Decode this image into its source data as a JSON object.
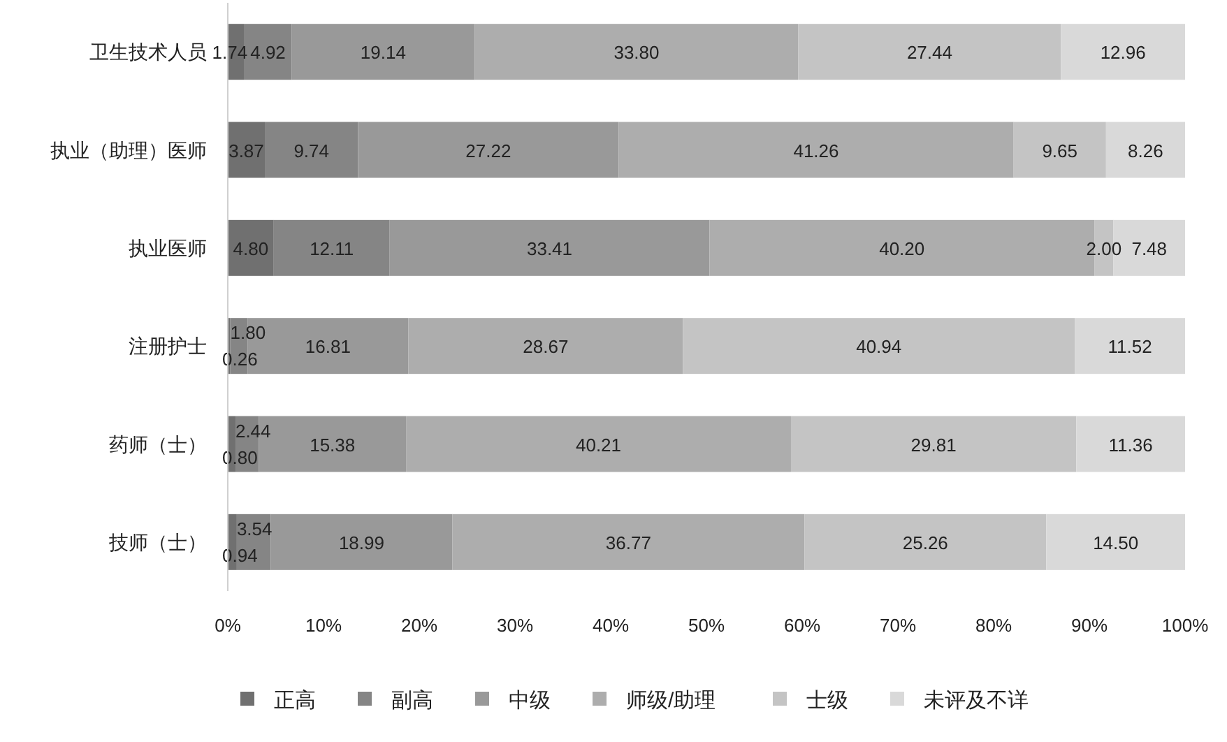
{
  "chart_data": {
    "type": "bar",
    "orientation": "horizontal",
    "stacked": true,
    "legend": "bottom",
    "grid": false,
    "categories": [
      "卫生技术人员",
      "执业（助理）医师",
      "执业医师",
      "注册护士",
      "药师（士）",
      "技师（士）"
    ],
    "xlim": [
      0,
      100
    ],
    "xticks": [
      {
        "value": 0,
        "label": "0%"
      },
      {
        "value": 10,
        "label": "10%"
      },
      {
        "value": 20,
        "label": "20%"
      },
      {
        "value": 30,
        "label": "30%"
      },
      {
        "value": 40,
        "label": "40%"
      },
      {
        "value": 50,
        "label": "50%"
      },
      {
        "value": 60,
        "label": "60%"
      },
      {
        "value": 70,
        "label": "70%"
      },
      {
        "value": 80,
        "label": "80%"
      },
      {
        "value": 90,
        "label": "90%"
      },
      {
        "value": 100,
        "label": "100%"
      }
    ],
    "series": [
      {
        "name": "正高",
        "color": "#707070",
        "values": [
          1.74,
          3.87,
          4.8,
          0.26,
          0.8,
          0.94
        ],
        "value_labels": [
          "1.74",
          "3.87",
          "4.80",
          "0.26",
          "0.80",
          "0.94"
        ]
      },
      {
        "name": "副高",
        "color": "#858585",
        "values": [
          4.92,
          9.74,
          12.11,
          1.8,
          2.44,
          3.54
        ],
        "value_labels": [
          "4.92",
          "9.74",
          "12.11",
          "1.80",
          "2.44",
          "3.54"
        ]
      },
      {
        "name": "中级",
        "color": "#999999",
        "values": [
          19.14,
          27.22,
          33.41,
          16.81,
          15.38,
          18.99
        ],
        "value_labels": [
          "19.14",
          "27.22",
          "33.41",
          "16.81",
          "15.38",
          "18.99"
        ]
      },
      {
        "name": "师级/助理",
        "color": "#adadad",
        "values": [
          33.8,
          41.26,
          40.2,
          28.67,
          40.21,
          36.77
        ],
        "value_labels": [
          "33.80",
          "41.26",
          "40.20",
          "28.67",
          "40.21",
          "36.77"
        ]
      },
      {
        "name": "士级",
        "color": "#c4c4c4",
        "values": [
          27.44,
          9.65,
          2.0,
          40.94,
          29.81,
          25.26
        ],
        "value_labels": [
          "27.44",
          "9.65",
          "2.00",
          "40.94",
          "29.81",
          "25.26"
        ]
      },
      {
        "name": "未评及不详",
        "color": "#d9d9d9",
        "values": [
          12.96,
          8.26,
          7.48,
          11.52,
          11.36,
          14.5
        ],
        "value_labels": [
          "12.96",
          "8.26",
          "7.48",
          "11.52",
          "11.36",
          "14.50"
        ]
      }
    ]
  }
}
